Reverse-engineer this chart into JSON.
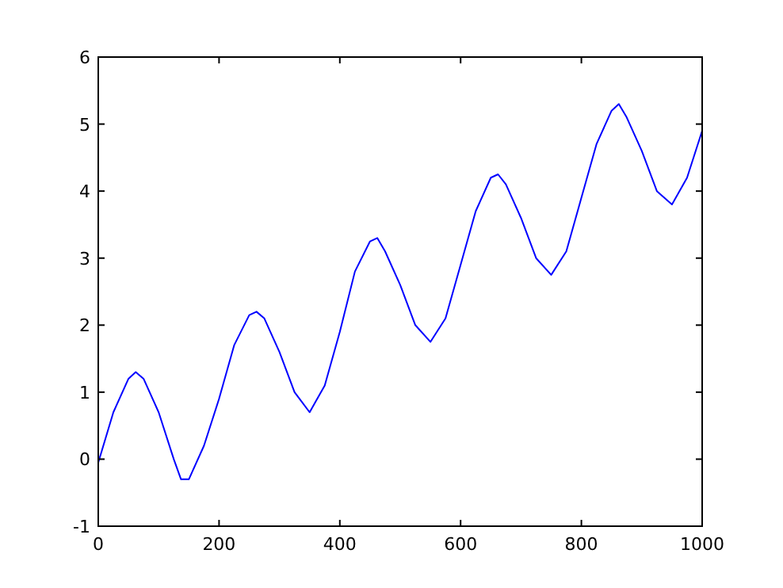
{
  "chart_data": {
    "type": "line",
    "x": [
      0,
      25,
      50,
      62,
      75,
      100,
      125,
      137,
      150,
      175,
      200,
      225,
      250,
      262,
      275,
      300,
      325,
      350,
      375,
      400,
      425,
      450,
      462,
      475,
      500,
      525,
      550,
      575,
      600,
      625,
      650,
      662,
      675,
      700,
      725,
      750,
      775,
      800,
      825,
      850,
      862,
      875,
      900,
      925,
      950,
      975,
      1000
    ],
    "series": [
      {
        "color": "#0000ff",
        "values": [
          -0.05,
          0.7,
          1.2,
          1.3,
          1.2,
          0.7,
          0.0,
          -0.3,
          -0.3,
          0.2,
          0.9,
          1.7,
          2.15,
          2.2,
          2.1,
          1.6,
          1.0,
          0.7,
          1.1,
          1.9,
          2.8,
          3.25,
          3.3,
          3.1,
          2.6,
          2.0,
          1.75,
          2.1,
          2.9,
          3.7,
          4.2,
          4.25,
          4.1,
          3.6,
          3.0,
          2.75,
          3.1,
          3.9,
          4.7,
          5.2,
          5.3,
          5.1,
          4.6,
          4.0,
          3.8,
          4.2,
          4.9
        ]
      }
    ],
    "xlim": [
      0,
      1000
    ],
    "xticks": [
      0,
      200,
      400,
      600,
      800,
      1000
    ],
    "ylim": [
      -1,
      6
    ],
    "yticks": [
      -1,
      0,
      1,
      2,
      3,
      4,
      5,
      6
    ],
    "grid": false,
    "marker": "none",
    "line_style": "solid"
  }
}
